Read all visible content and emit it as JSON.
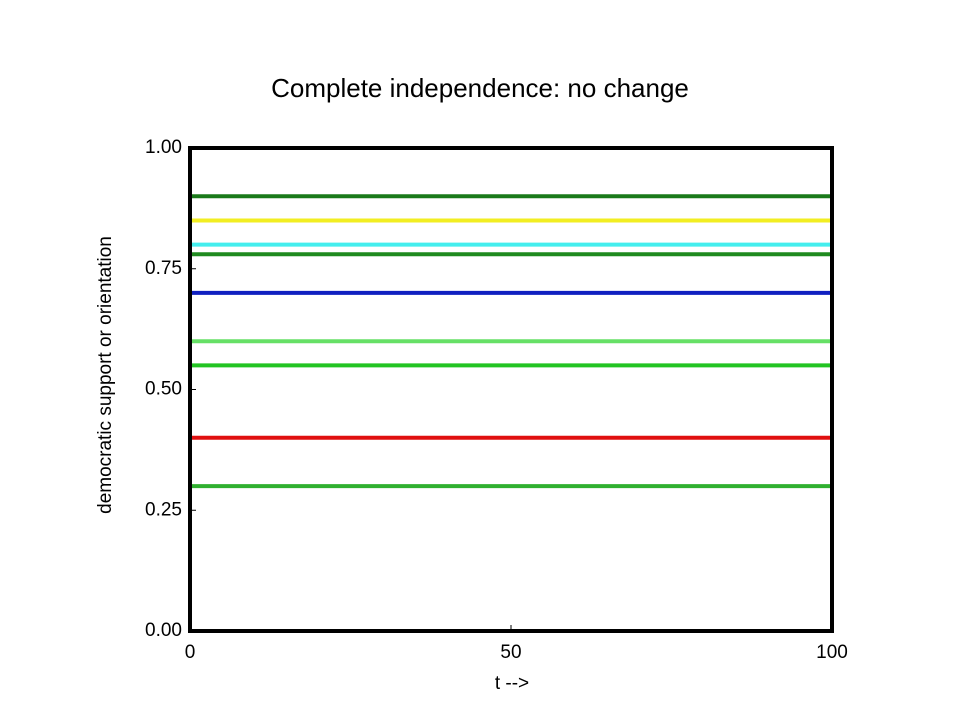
{
  "chart_data": {
    "type": "line",
    "title": "Complete independence: no change",
    "xlabel": "t -->",
    "ylabel": "democratic support or orientation",
    "x": [
      0,
      100
    ],
    "series": [
      {
        "color": "#1a7a1a",
        "values": [
          0.9,
          0.9
        ]
      },
      {
        "color": "#f2ee22",
        "values": [
          0.85,
          0.85
        ]
      },
      {
        "color": "#44eeee",
        "values": [
          0.8,
          0.8
        ]
      },
      {
        "color": "#1f8a1f",
        "values": [
          0.78,
          0.78
        ]
      },
      {
        "color": "#1020c0",
        "values": [
          0.7,
          0.7
        ]
      },
      {
        "color": "#66e066",
        "values": [
          0.6,
          0.6
        ]
      },
      {
        "color": "#22c422",
        "values": [
          0.55,
          0.55
        ]
      },
      {
        "color": "#e01010",
        "values": [
          0.4,
          0.4
        ]
      },
      {
        "color": "#30b030",
        "values": [
          0.3,
          0.3
        ]
      }
    ],
    "xlim": [
      0,
      100
    ],
    "xticks": [
      0,
      50,
      100
    ],
    "ylim": [
      0,
      1
    ],
    "yticks": [
      {
        "value": 0,
        "label": "0.00"
      },
      {
        "value": 0.25,
        "label": "0.25"
      },
      {
        "value": 0.5,
        "label": "0.50"
      },
      {
        "value": 0.75,
        "label": "0.75"
      },
      {
        "value": 1,
        "label": "1.00"
      }
    ],
    "grid": false
  }
}
